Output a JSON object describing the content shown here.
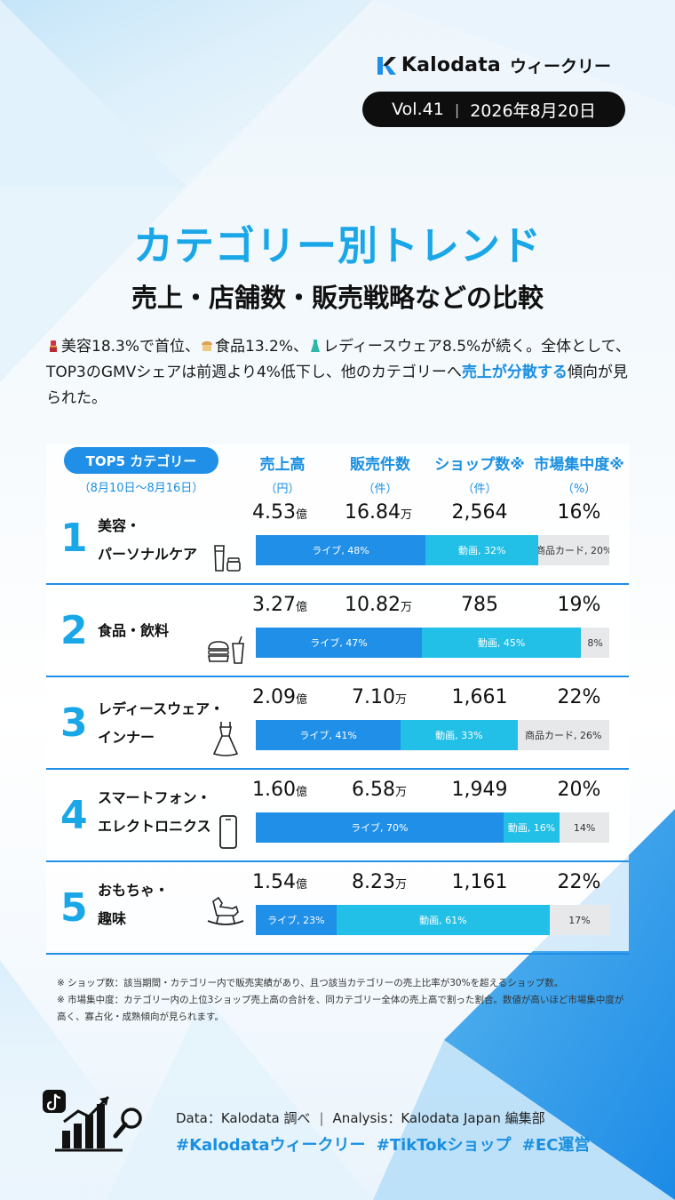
{
  "header": {
    "brand_name": "Kalodata",
    "brand_sub": "ウィークリー",
    "vol": "Vol.41",
    "date": "2026年8月20日"
  },
  "title": "カテゴリー別トレンド",
  "subtitle": "売上・店舗数・販売戦略などの比較",
  "summary": {
    "p1": "美容18.3%で首位、",
    "p2": "食品13.2%、",
    "p3": "レディースウェア8.5%が続く。全体として、TOP3のGMVシェアは前週より4%低下し、他のカテゴリーへ",
    "highlight": "売上が分散する",
    "p4": "傾向が見られた。"
  },
  "table": {
    "top5_label": "TOP5 カテゴリー",
    "period": "（8月10日〜8月16日）",
    "columns": [
      {
        "label": "売上高",
        "unit": "（円）"
      },
      {
        "label": "販売件数",
        "unit": "（件）"
      },
      {
        "label": "ショップ数※",
        "unit": "（件）"
      },
      {
        "label": "市場集中度※",
        "unit": "（%）"
      }
    ],
    "rows": [
      {
        "rank": "1",
        "line1": "美容・",
        "line2": "パーソナルケア",
        "icon": "cosmetics-icon",
        "sales": "4.53",
        "sales_unit": "億",
        "count": "16.84",
        "count_unit": "万",
        "shops": "2,564",
        "conc": "16%",
        "live": 48,
        "video": 32,
        "other": 20,
        "live_label": "ライブ, 48%",
        "video_label": "動画, 32%",
        "other_label": "商品カード, 20%"
      },
      {
        "rank": "2",
        "line1": "食品・飲料",
        "line2": "",
        "icon": "burger-drink-icon",
        "sales": "3.27",
        "sales_unit": "億",
        "count": "10.82",
        "count_unit": "万",
        "shops": "785",
        "conc": "19%",
        "live": 47,
        "video": 45,
        "other": 8,
        "live_label": "ライブ, 47%",
        "video_label": "動画, 45%",
        "other_label": "8%"
      },
      {
        "rank": "3",
        "line1": "レディースウェア・",
        "line2": "インナー",
        "icon": "dress-icon",
        "sales": "2.09",
        "sales_unit": "億",
        "count": "7.10",
        "count_unit": "万",
        "shops": "1,661",
        "conc": "22%",
        "live": 41,
        "video": 33,
        "other": 26,
        "live_label": "ライブ, 41%",
        "video_label": "動画, 33%",
        "other_label": "商品カード, 26%"
      },
      {
        "rank": "4",
        "line1": "スマートフォン・",
        "line2": "エレクトロニクス",
        "icon": "smartphone-icon",
        "sales": "1.60",
        "sales_unit": "億",
        "count": "6.58",
        "count_unit": "万",
        "shops": "1,949",
        "conc": "20%",
        "live": 70,
        "video": 16,
        "other": 14,
        "live_label": "ライブ, 70%",
        "video_label": "動画, 16%",
        "other_label": "14%"
      },
      {
        "rank": "5",
        "line1": "おもちゃ・",
        "line2": "趣味",
        "icon": "rocking-horse-icon",
        "sales": "1.54",
        "sales_unit": "億",
        "count": "8.23",
        "count_unit": "万",
        "shops": "1,161",
        "conc": "22%",
        "live": 23,
        "video": 61,
        "other": 17,
        "live_label": "ライブ, 23%",
        "video_label": "動画, 61%",
        "other_label": "17%"
      }
    ]
  },
  "notes": {
    "n1": "※ ショップ数：該当期間・カテゴリー内で販売実績があり、且つ該当カテゴリーの売上比率が30%を超えるショップ数。",
    "n2": "※ 市場集中度：カテゴリー内の上位3ショップ売上高の合計を、同カテゴリー全体の売上高で割った割合。数値が高いほど市場集中度が高く、寡占化・成熟傾向が見られます。"
  },
  "footer": {
    "data_source": "Data：Kalodata 調べ",
    "analysis": "Analysis：Kalodata Japan 編集部",
    "hashtags": "#Kalodataウィークリー  #TikTokショップ  #EC運営"
  },
  "colors": {
    "accent": "#1aa7e8",
    "live": "#1f8fe8",
    "video": "#22bfe6",
    "other": "#e6e8ea"
  }
}
